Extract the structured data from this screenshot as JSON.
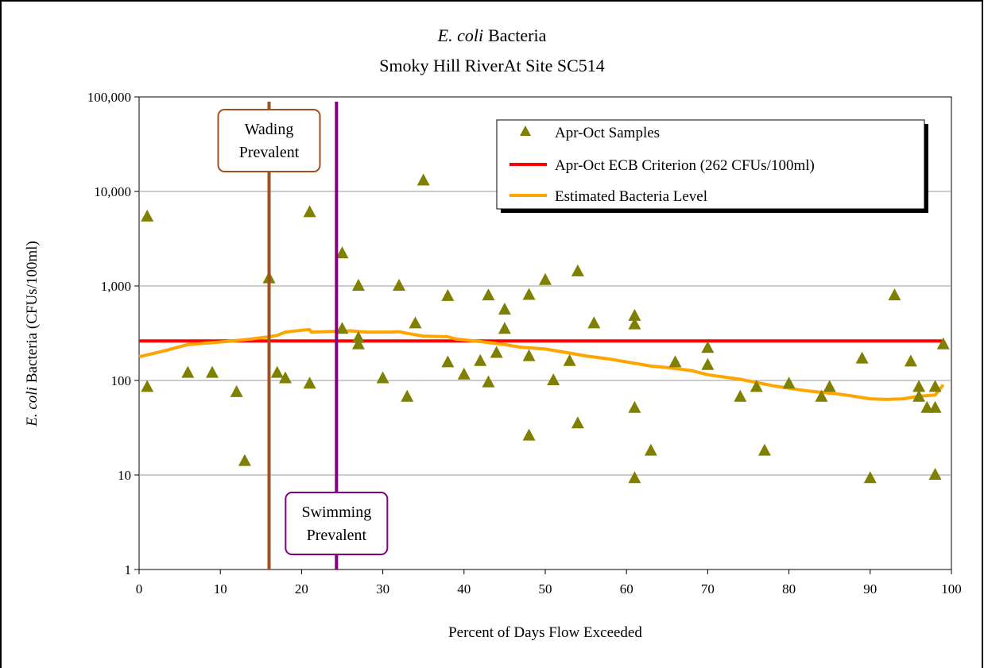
{
  "chart_data": {
    "type": "scatter",
    "title": "E. coli Bacteria",
    "title_italic": "E. coli",
    "title_rest": "Bacteria",
    "subtitle": "Smoky Hill RiverAt Site SC514",
    "xlabel": "Percent of Days Flow Exceeded",
    "ylabel": "E. coli Bacteria (CFUs/100ml)",
    "ylabel_italic": "E. coli",
    "ylabel_rest": "Bacteria (CFUs/100ml)",
    "y_scale": "log",
    "xlim": [
      0,
      100
    ],
    "ylim": [
      1,
      100000
    ],
    "grid": "horizontal gridlines on",
    "legend_position": "top-right",
    "x_ticks": [
      0,
      10,
      20,
      30,
      40,
      50,
      60,
      70,
      80,
      90,
      100
    ],
    "x_tick_labels": [
      "0",
      "10",
      "20",
      "30",
      "40",
      "50",
      "60",
      "70",
      "80",
      "90",
      "100"
    ],
    "y_ticks": [
      1,
      10,
      100,
      1000,
      10000,
      100000
    ],
    "y_tick_labels": [
      "1",
      "10",
      "100",
      "1,000",
      "10,000",
      "100,000"
    ],
    "colors": {
      "samples": "#808000",
      "criterion": "#ff0000",
      "estimate": "#ffa500",
      "wading": "#a0501e",
      "swimming": "#800080"
    },
    "series": [
      {
        "name": "Apr-Oct Samples",
        "kind": "scatter",
        "points": [
          [
            1,
            5400
          ],
          [
            1,
            85
          ],
          [
            6,
            120
          ],
          [
            9,
            120
          ],
          [
            12,
            75
          ],
          [
            13,
            14
          ],
          [
            16,
            1200
          ],
          [
            17,
            120
          ],
          [
            18,
            105
          ],
          [
            21,
            6000
          ],
          [
            21,
            92
          ],
          [
            25,
            2200
          ],
          [
            25,
            350
          ],
          [
            27,
            1000
          ],
          [
            27,
            280
          ],
          [
            27,
            240
          ],
          [
            30,
            105
          ],
          [
            32,
            1000
          ],
          [
            33,
            67
          ],
          [
            34,
            400
          ],
          [
            35,
            13000
          ],
          [
            38,
            780
          ],
          [
            38,
            155
          ],
          [
            40,
            115
          ],
          [
            42,
            160
          ],
          [
            43,
            790
          ],
          [
            43,
            95
          ],
          [
            44,
            195
          ],
          [
            45,
            560
          ],
          [
            45,
            350
          ],
          [
            48,
            800
          ],
          [
            48,
            180
          ],
          [
            48,
            26
          ],
          [
            50,
            1150
          ],
          [
            51,
            100
          ],
          [
            53,
            160
          ],
          [
            54,
            1420
          ],
          [
            54,
            35
          ],
          [
            56,
            400
          ],
          [
            61,
            480
          ],
          [
            61,
            390
          ],
          [
            61,
            51
          ],
          [
            61,
            9.2
          ],
          [
            63,
            18
          ],
          [
            66,
            155
          ],
          [
            70,
            220
          ],
          [
            70,
            145
          ],
          [
            74,
            67
          ],
          [
            76,
            85
          ],
          [
            77,
            18
          ],
          [
            80,
            92
          ],
          [
            84,
            67
          ],
          [
            85,
            85
          ],
          [
            89,
            170
          ],
          [
            90,
            9.2
          ],
          [
            93,
            790
          ],
          [
            95,
            158
          ],
          [
            96,
            85
          ],
          [
            96,
            67
          ],
          [
            97,
            51
          ],
          [
            98,
            85
          ],
          [
            98,
            51
          ],
          [
            98,
            10
          ],
          [
            99,
            240
          ]
        ]
      },
      {
        "name": "Apr-Oct ECB Criterion (262 CFUs/100ml)",
        "kind": "hline",
        "value": 262,
        "x_range": [
          0,
          99
        ]
      },
      {
        "name": "Estimated Bacteria Level",
        "kind": "line",
        "points": [
          [
            0,
            178
          ],
          [
            3,
            205
          ],
          [
            6,
            240
          ],
          [
            10,
            255
          ],
          [
            13,
            270
          ],
          [
            16,
            290
          ],
          [
            17,
            300
          ],
          [
            18,
            325
          ],
          [
            20,
            340
          ],
          [
            21,
            345
          ],
          [
            21.2,
            325
          ],
          [
            24,
            330
          ],
          [
            26,
            335
          ],
          [
            28,
            325
          ],
          [
            31,
            325
          ],
          [
            32,
            328
          ],
          [
            33,
            315
          ],
          [
            35,
            295
          ],
          [
            38,
            290
          ],
          [
            39,
            275
          ],
          [
            42,
            258
          ],
          [
            45,
            240
          ],
          [
            47,
            225
          ],
          [
            50,
            215
          ],
          [
            53,
            195
          ],
          [
            55,
            182
          ],
          [
            58,
            168
          ],
          [
            61,
            152
          ],
          [
            63,
            142
          ],
          [
            65,
            137
          ],
          [
            68,
            127
          ],
          [
            70,
            115
          ],
          [
            74,
            103
          ],
          [
            78,
            88
          ],
          [
            82,
            78
          ],
          [
            86,
            72
          ],
          [
            88,
            68
          ],
          [
            90,
            64
          ],
          [
            92,
            63
          ],
          [
            94,
            64
          ],
          [
            96,
            68
          ],
          [
            98,
            70
          ],
          [
            99,
            90
          ]
        ]
      }
    ],
    "reference_lines": [
      {
        "name": "Wading Prevalent",
        "x": 16,
        "color_key": "wading",
        "label_line1": "Wading",
        "label_line2": "Prevalent",
        "label_position": "top"
      },
      {
        "name": "Swimming Prevalent",
        "x": 24.3,
        "color_key": "swimming",
        "label_line1": "Swimming",
        "label_line2": "Prevalent",
        "label_position": "bottom"
      }
    ]
  }
}
